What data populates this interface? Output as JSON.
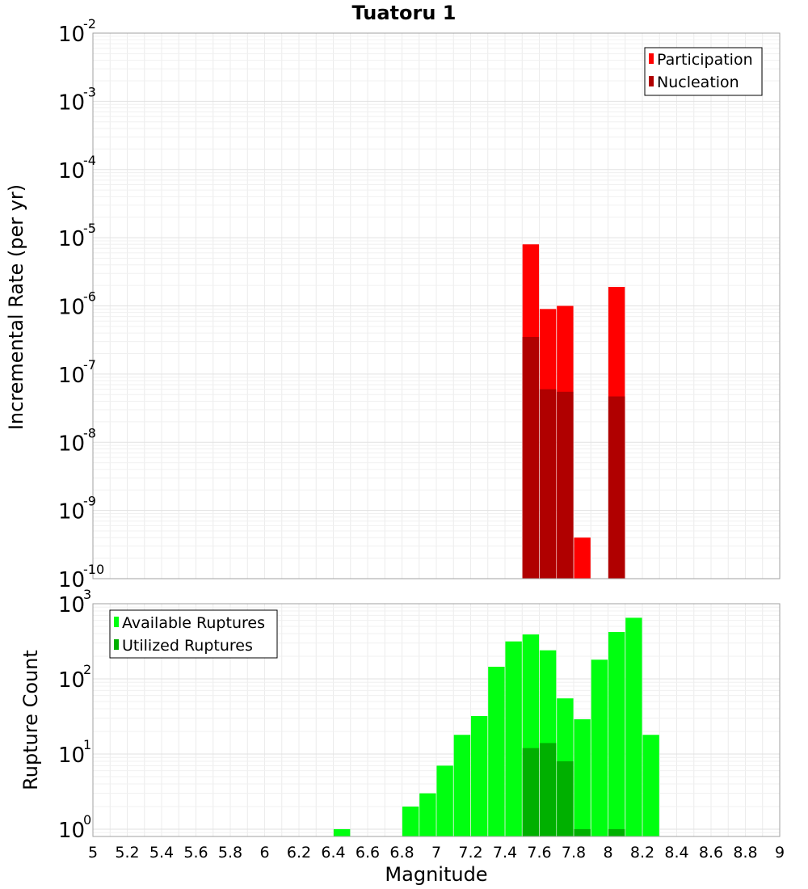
{
  "chart_data": [
    {
      "type": "bar",
      "title": "Tuatoru 1",
      "xlabel": "",
      "ylabel": "Incremental Rate (per yr)",
      "yscale": "log",
      "ylim": [
        1e-10,
        0.01
      ],
      "xlim": [
        5,
        9
      ],
      "y_tick_base": "10",
      "y_tick_exponents": [
        "-10",
        "-9",
        "-8",
        "-7",
        "-6",
        "-5",
        "-4",
        "-3",
        "-2"
      ],
      "grid": true,
      "legend_position": "top-right",
      "series": [
        {
          "name": "Participation",
          "color": "#ff0000",
          "x": [
            7.55,
            7.65,
            7.75,
            7.85,
            8.05
          ],
          "values": [
            8e-06,
            9e-07,
            1e-06,
            4e-10,
            1.9e-06
          ]
        },
        {
          "name": "Nucleation",
          "color": "#b00000",
          "x": [
            7.55,
            7.65,
            7.75,
            8.05
          ],
          "values": [
            3.5e-07,
            6e-08,
            5.5e-08,
            4.7e-08
          ]
        }
      ]
    },
    {
      "type": "bar",
      "xlabel": "Magnitude",
      "ylabel": "Rupture Count",
      "yscale": "log",
      "ylim": [
        0.8,
        1000
      ],
      "xlim": [
        5,
        9
      ],
      "y_tick_base": "10",
      "y_tick_exponents": [
        "0",
        "1",
        "2",
        "3"
      ],
      "x_ticks": [
        "5",
        "5.2",
        "5.4",
        "5.6",
        "5.8",
        "6",
        "6.2",
        "6.4",
        "6.6",
        "6.8",
        "7",
        "7.2",
        "7.4",
        "7.6",
        "7.8",
        "8",
        "8.2",
        "8.4",
        "8.6",
        "8.8",
        "9"
      ],
      "grid": true,
      "legend_position": "top-left",
      "series": [
        {
          "name": "Available Ruptures",
          "color": "#00ff10",
          "x": [
            6.45,
            6.85,
            6.95,
            7.05,
            7.15,
            7.25,
            7.35,
            7.45,
            7.55,
            7.65,
            7.75,
            7.85,
            7.95,
            8.05,
            8.15,
            8.25
          ],
          "values": [
            1,
            2,
            3,
            7,
            18,
            32,
            145,
            315,
            390,
            240,
            55,
            29,
            180,
            420,
            650,
            18
          ]
        },
        {
          "name": "Utilized Ruptures",
          "color": "#00b000",
          "x": [
            7.55,
            7.65,
            7.75,
            7.85,
            8.05
          ],
          "values": [
            12,
            14,
            8,
            1,
            1
          ]
        }
      ]
    }
  ]
}
